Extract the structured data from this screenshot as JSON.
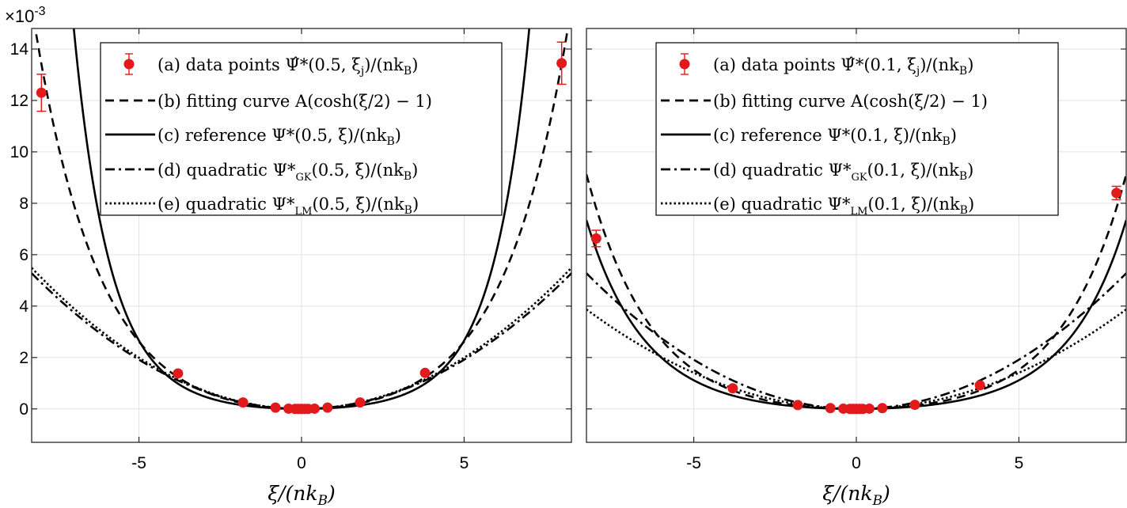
{
  "figure": {
    "exponent_label": "×10",
    "exponent_power": "-3"
  },
  "legend_labels": [
    "(a) data points",
    "(b) fitting curve",
    "(c) reference",
    "(d) quadratic",
    "(e) quadratic"
  ],
  "chart_data": [
    {
      "type": "line",
      "panel": "left",
      "xlabel": "ξ/(nk_B)",
      "ylabel": "",
      "xlim": [
        -8.3,
        8.3
      ],
      "ylim": [
        -0.0013,
        0.0148
      ],
      "xticks": [
        -5,
        0,
        5
      ],
      "xtick_labels": [
        "-5",
        "0",
        "5"
      ],
      "yticks": [
        0,
        0.002,
        0.004,
        0.006,
        0.008,
        0.01,
        0.012,
        0.014
      ],
      "ytick_labels": [
        "0",
        "2",
        "4",
        "6",
        "8",
        "10",
        "12",
        "14"
      ],
      "y_scale_label": "×10^-3",
      "grid": true,
      "legend_position": "top-center",
      "series": [
        {
          "name": "(a) data points Ψ̂*(0.5, ξj)/(nkB)",
          "kind": "errorbar",
          "color": "#e31a1c",
          "x": [
            -8,
            -3.8,
            -1.8,
            -0.8,
            -0.4,
            -0.2,
            -0.1,
            0,
            0.1,
            0.2,
            0.4,
            0.8,
            1.8,
            3.8,
            8
          ],
          "y": [
            0.0123,
            0.00138,
            0.00025,
            5e-05,
            1e-05,
            0,
            0,
            0,
            0,
            0,
            1e-05,
            5e-05,
            0.00025,
            0.0014,
            0.01345
          ],
          "yerr": [
            0.00072,
            0,
            0,
            0,
            0,
            0,
            0,
            0,
            0,
            0,
            0,
            0,
            0,
            0,
            0.00082
          ]
        },
        {
          "name": "(b) fitting curve A(cosh(ξ/2)−1)",
          "kind": "func",
          "style": "dashed",
          "A": 0.00051
        },
        {
          "name": "(c) reference Ψ*(0.5, ξ)/(nkB)",
          "kind": "func",
          "style": "solid",
          "A": 0.0002246,
          "B": 0.0002056
        },
        {
          "name": "(d) quadratic Ψ*GK(0.5, ξ)/(nkB)",
          "kind": "func",
          "style": "dashdot",
          "c": 7.66e-05
        },
        {
          "name": "(e) quadratic Ψ*LM(0.5, ξ)/(nkB)",
          "kind": "func",
          "style": "dotted",
          "c": 7.97e-05
        }
      ]
    },
    {
      "type": "line",
      "panel": "right",
      "xlabel": "ξ/(nk_B)",
      "ylabel": "",
      "xlim": [
        -8.3,
        8.3
      ],
      "ylim": [
        -0.0013,
        0.0148
      ],
      "xticks": [
        -5,
        0,
        5
      ],
      "xtick_labels": [
        "-5",
        "0",
        "5"
      ],
      "yticks": [
        0,
        0.002,
        0.004,
        0.006,
        0.008,
        0.01,
        0.012,
        0.014
      ],
      "ytick_labels": [],
      "grid": true,
      "legend_position": "top-center",
      "series": [
        {
          "name": "(a) data points Ψ̂*(0.1, ξj)/(nkB)",
          "kind": "errorbar",
          "color": "#e31a1c",
          "x": [
            -8,
            -3.8,
            -1.8,
            -0.8,
            -0.4,
            -0.2,
            -0.1,
            0,
            0.1,
            0.2,
            0.4,
            0.8,
            1.8,
            3.8,
            8
          ],
          "y": [
            0.00663,
            0.0008,
            0.00015,
            3e-05,
            1e-05,
            0,
            0,
            0,
            0,
            0,
            1e-05,
            3e-05,
            0.00016,
            0.00092,
            0.0084
          ],
          "yerr": [
            0.00032,
            0,
            0,
            0,
            0,
            0,
            0,
            0,
            0,
            0,
            0,
            0,
            0,
            0,
            0.00026
          ]
        },
        {
          "name": "(b) fitting curve A(cosh(ξ/2)−1)",
          "kind": "func",
          "style": "dashed",
          "A": 0.000297
        },
        {
          "name": "(c) reference Ψ*(0.1, ξ)/(nkB)",
          "kind": "func",
          "style": "solid",
          "A": 0.000211,
          "B": 4.3e-06
        },
        {
          "name": "(d) quadratic Ψ*GK(0.1, ξ)/(nkB)",
          "kind": "func",
          "style": "dashdot",
          "c": 7.66e-05
        },
        {
          "name": "(e) quadratic Ψ*LM(0.1, ξ)/(nkB)",
          "kind": "func",
          "style": "dotted",
          "c": 5.62e-05
        }
      ]
    }
  ]
}
